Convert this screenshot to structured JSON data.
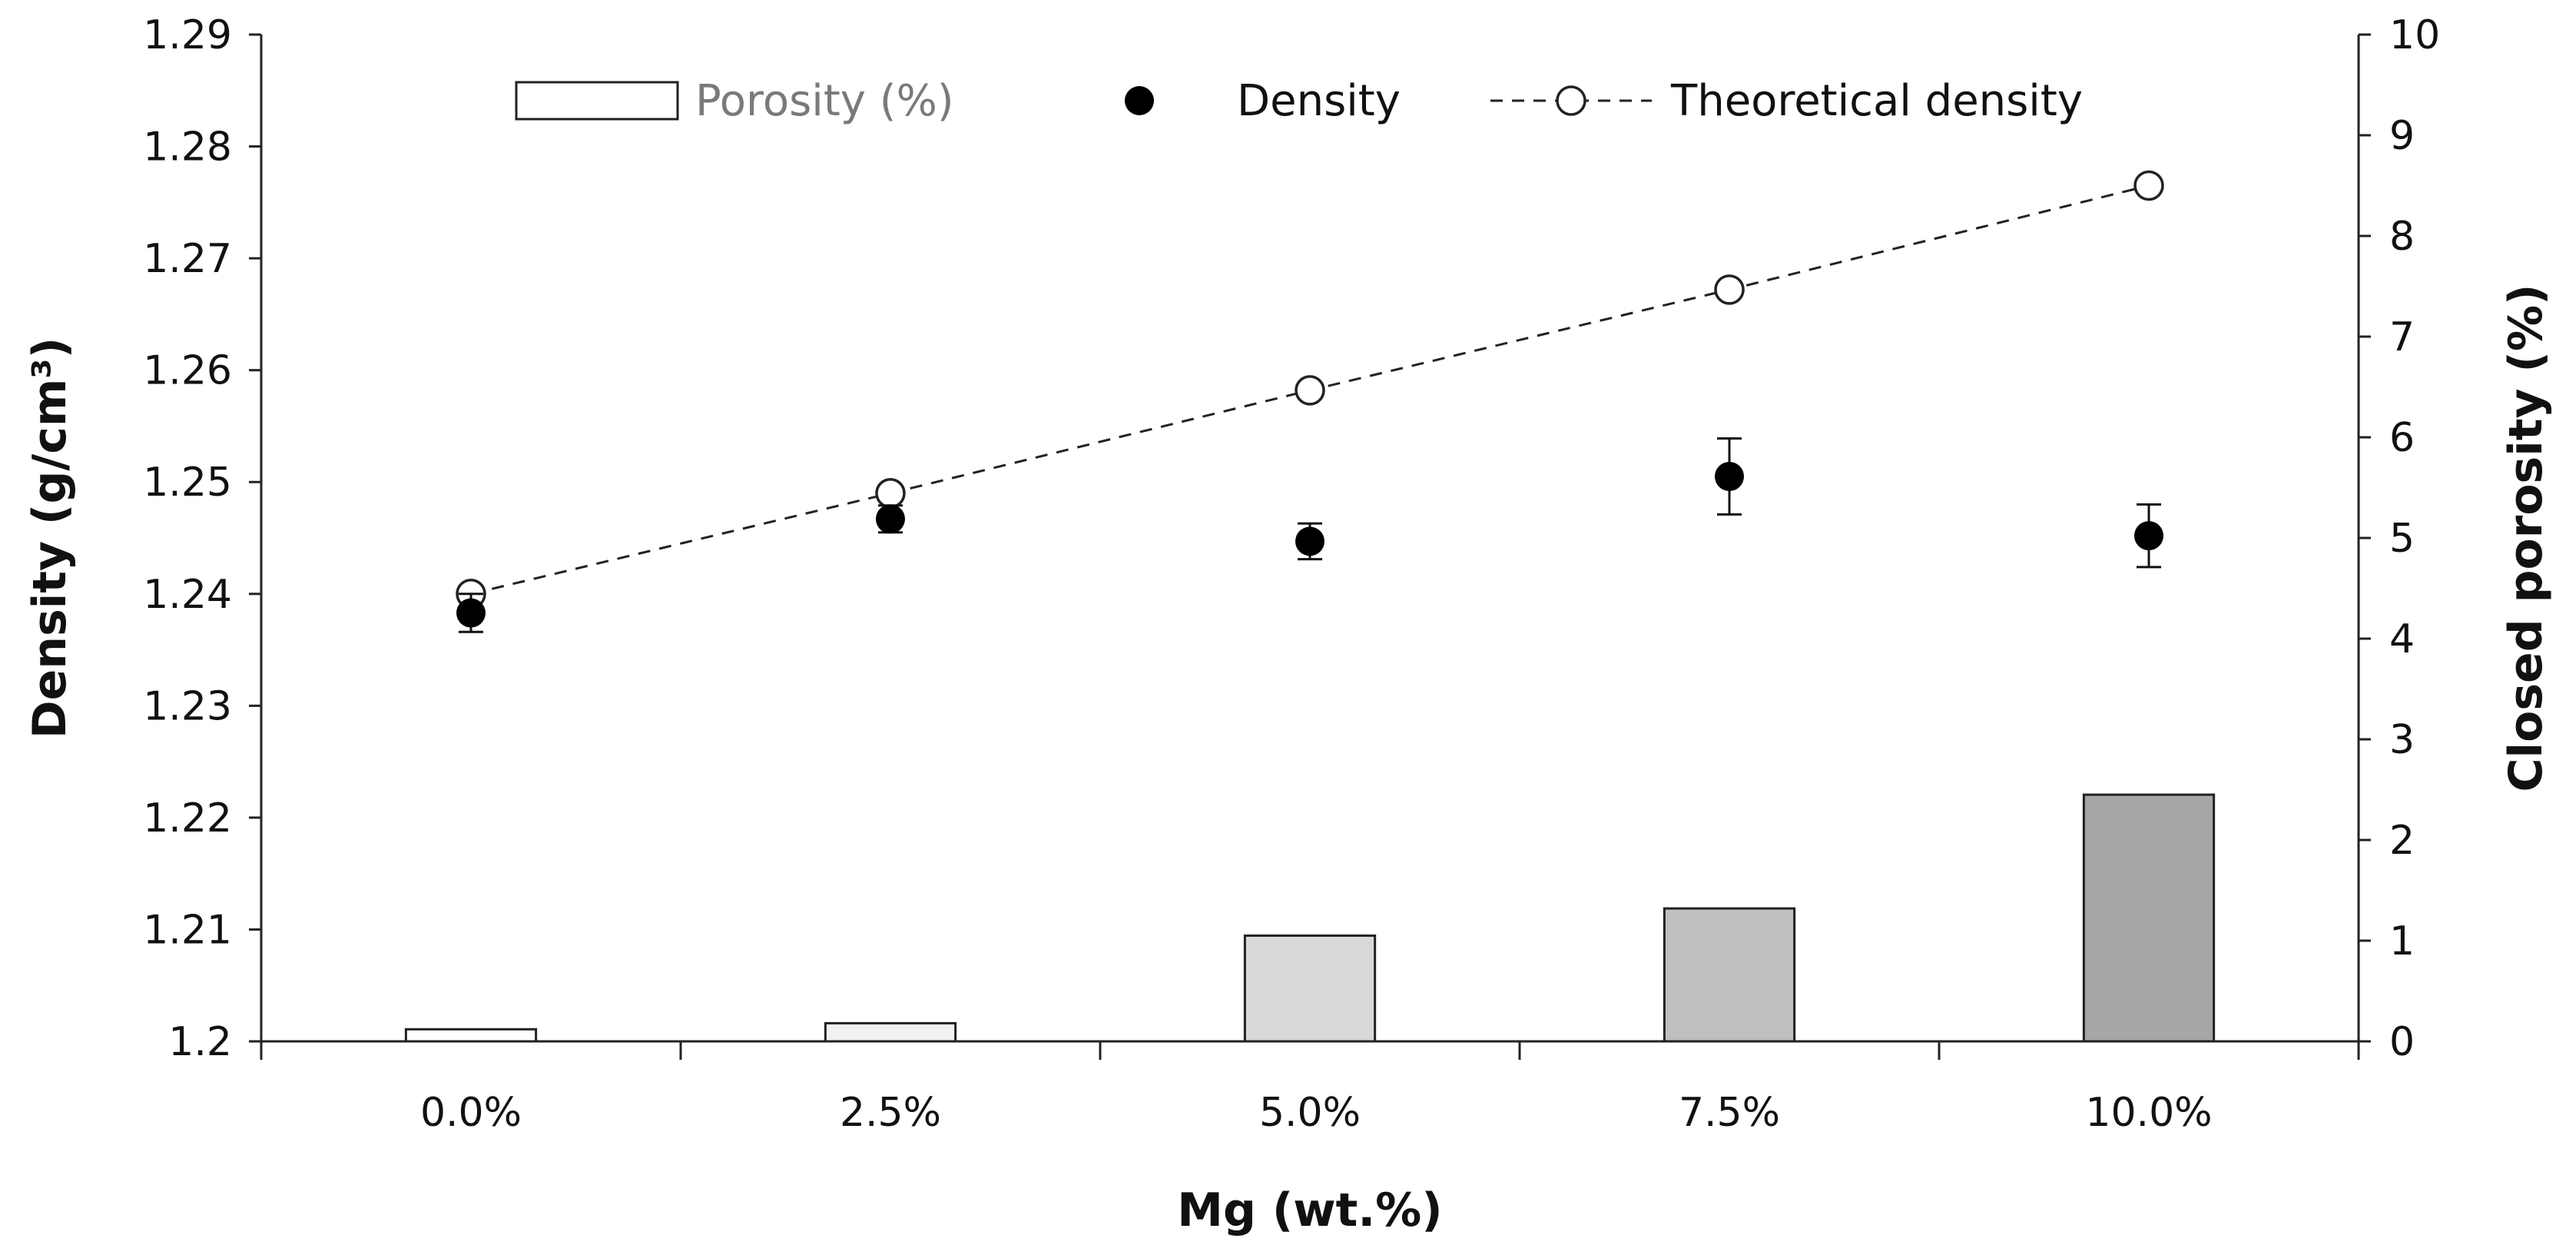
{
  "chart_data": {
    "type": "bar+scatter",
    "categories": [
      "0.0%",
      "2.5%",
      "5.0%",
      "7.5%",
      "10.0%"
    ],
    "xlabel": "Mg (wt.%)",
    "ylabel": "Density (g/cm³)",
    "ylabel2": "Closed porosity (%)",
    "ylim": [
      1.2,
      1.29
    ],
    "y_ticks": [
      "1.2",
      "1.21",
      "1.22",
      "1.23",
      "1.24",
      "1.25",
      "1.26",
      "1.27",
      "1.28",
      "1.29"
    ],
    "y2lim": [
      0,
      10
    ],
    "y2_ticks": [
      "0",
      "1",
      "2",
      "3",
      "4",
      "5",
      "6",
      "7",
      "8",
      "9",
      "10"
    ],
    "legend": {
      "porosity": "Porosity (%)",
      "density": "Density",
      "theoretical": "Theoretical density"
    },
    "series": [
      {
        "name": "Porosity (%)",
        "type": "bar",
        "axis": "right",
        "values": [
          0.12,
          0.18,
          1.05,
          1.32,
          2.45
        ],
        "fills": [
          "#ffffff",
          "#f2f2f2",
          "#d9d9d9",
          "#bfbfbf",
          "#a6a6a6"
        ]
      },
      {
        "name": "Density",
        "type": "scatter",
        "axis": "left",
        "values": [
          1.2383,
          1.2467,
          1.2447,
          1.2505,
          1.2452
        ],
        "errors": [
          0.0017,
          0.0012,
          0.0016,
          0.0034,
          0.0028
        ]
      },
      {
        "name": "Theoretical density",
        "type": "line",
        "axis": "left",
        "values": [
          1.24,
          1.249,
          1.2582,
          1.2672,
          1.2765
        ]
      }
    ]
  }
}
